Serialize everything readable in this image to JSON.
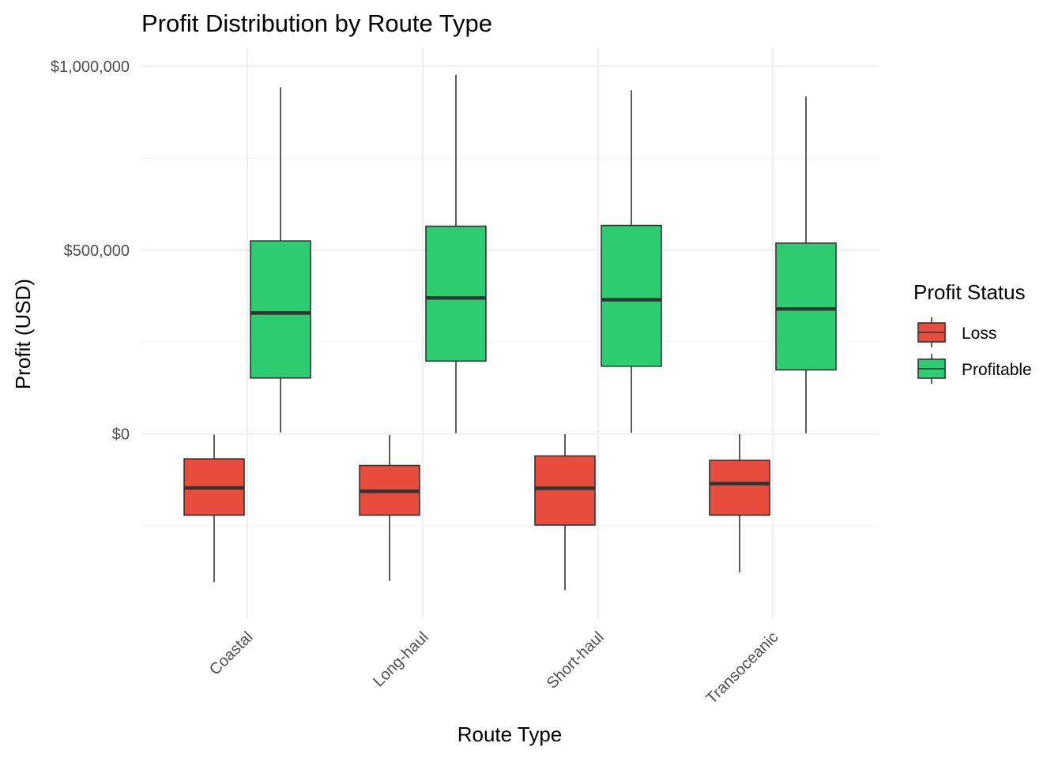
{
  "chart_data": {
    "type": "boxplot",
    "title": "Profit Distribution by Route Type",
    "xlabel": "Route Type",
    "ylabel": "Profit (USD)",
    "ylim": [
      -500000,
      1050000
    ],
    "y_ticks": [
      0,
      500000,
      1000000
    ],
    "y_tick_labels": [
      "$0",
      "$500,000",
      "$1,000,000"
    ],
    "grid": true,
    "legend": {
      "title": "Profit Status",
      "position": "right"
    },
    "categories": [
      "Coastal",
      "Long-haul",
      "Short-haul",
      "Transoceanic"
    ],
    "series": [
      {
        "name": "Loss",
        "color": "#E74C3C",
        "boxes": [
          {
            "whisker_low": -403000,
            "q1": -221000,
            "median": -147000,
            "q3": -68000,
            "whisker_high": -2000
          },
          {
            "whisker_low": -400000,
            "q1": -221000,
            "median": -156000,
            "q3": -86000,
            "whisker_high": -3000
          },
          {
            "whisker_low": -425000,
            "q1": -248000,
            "median": -148000,
            "q3": -60000,
            "whisker_high": -1000
          },
          {
            "whisker_low": -377000,
            "q1": -221000,
            "median": -135000,
            "q3": -72000,
            "whisker_high": -1000
          }
        ]
      },
      {
        "name": "Profitable",
        "color": "#2ECC71",
        "boxes": [
          {
            "whisker_low": 4000,
            "q1": 152000,
            "median": 329000,
            "q3": 525000,
            "whisker_high": 943000
          },
          {
            "whisker_low": 2000,
            "q1": 198000,
            "median": 370000,
            "q3": 565000,
            "whisker_high": 977000
          },
          {
            "whisker_low": 3000,
            "q1": 184000,
            "median": 365000,
            "q3": 567000,
            "whisker_high": 935000
          },
          {
            "whisker_low": 2000,
            "q1": 174000,
            "median": 340000,
            "q3": 519000,
            "whisker_high": 918000
          }
        ]
      }
    ]
  }
}
